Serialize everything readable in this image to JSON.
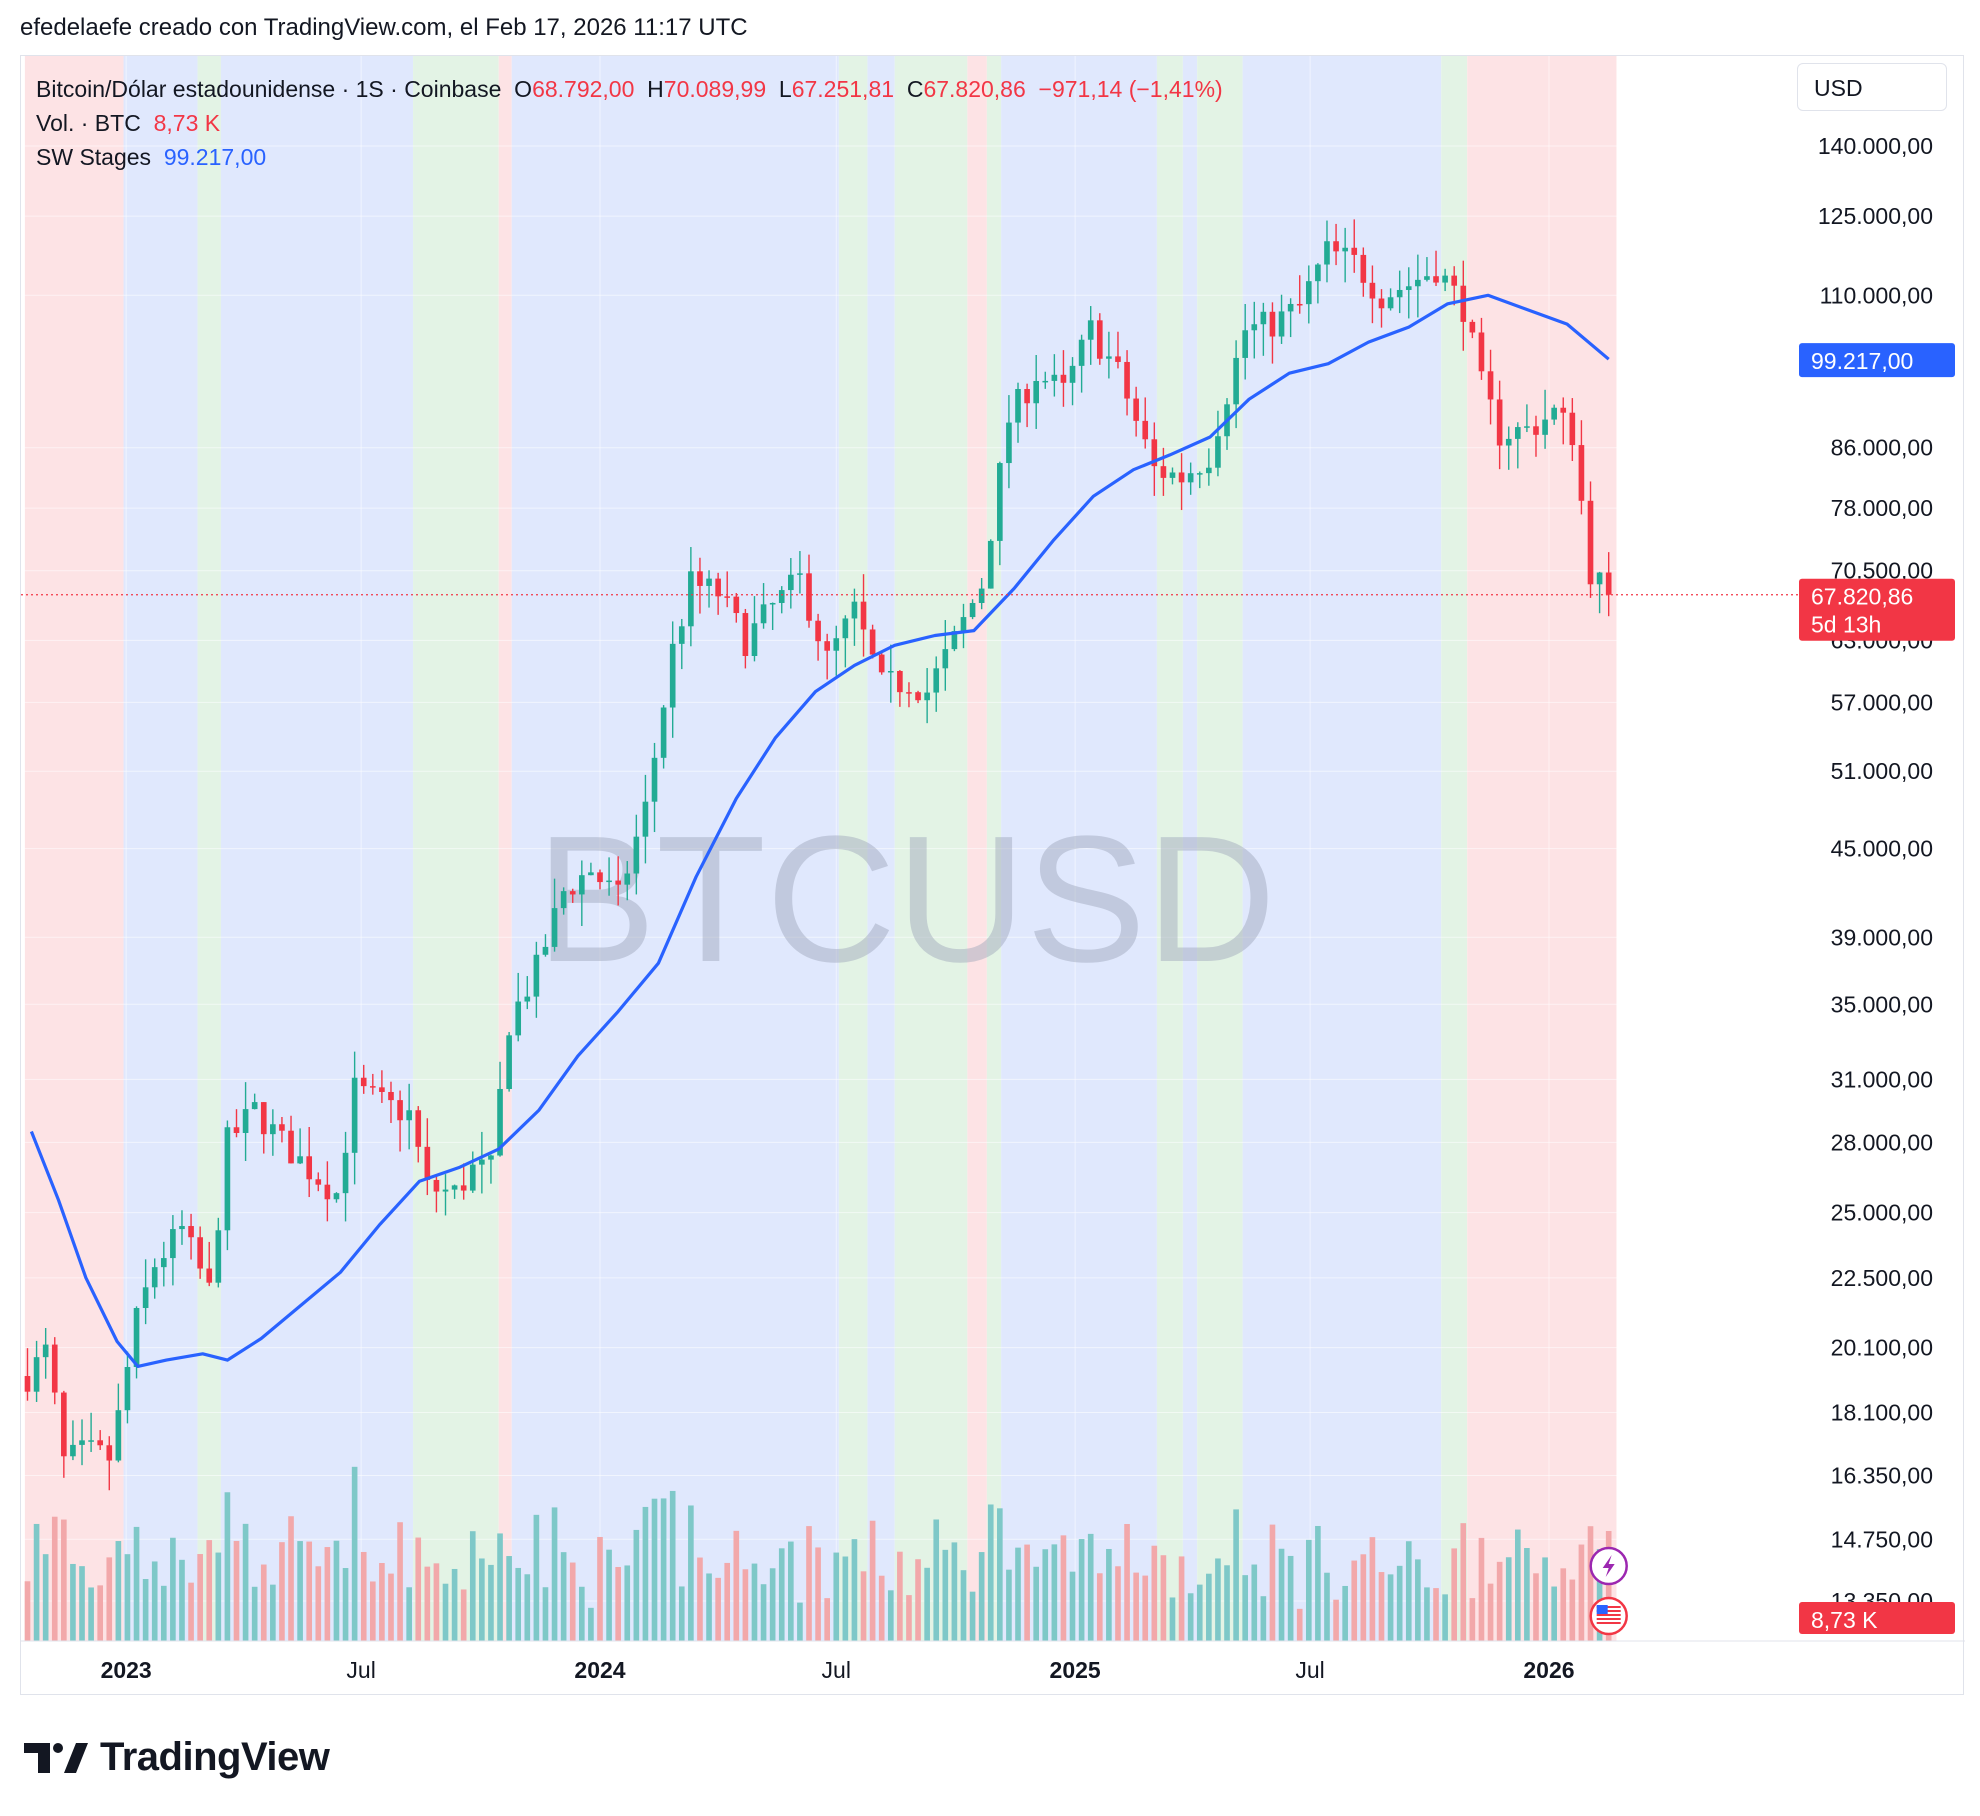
{
  "header": {
    "text": "efedelaefe creado con TradingView.com, el Feb 17, 2026 11:17 UTC"
  },
  "legend": {
    "symbol": "Bitcoin/Dólar estadounidense · 1S · Coinbase",
    "o_label": "O",
    "o_value": "68.792,00",
    "h_label": "H",
    "h_value": "70.089,99",
    "l_label": "L",
    "l_value": "67.251,81",
    "c_label": "C",
    "c_value": "67.820,86",
    "change": "−971,14 (−1,41%)",
    "vol_label": "Vol. · BTC",
    "vol_value": "8,73 K",
    "sw_label": "SW Stages",
    "sw_value": "99.217,00"
  },
  "currency_button": "USD",
  "watermark": "BTCUSD",
  "footer": {
    "brand": "TradingView"
  },
  "colors": {
    "up": "#22ab94",
    "down": "#f23645",
    "ma": "#2962ff",
    "stage_red": "#fde3e5",
    "stage_blue": "#e0e8fd",
    "stage_green": "#e3f3e5",
    "vol_up": "#7ec8c8",
    "vol_down": "#f2a8aa"
  },
  "chart_data": {
    "type": "candlestick",
    "timeframe": "1W",
    "scale": "log",
    "y_ticks": [
      "140.000,00",
      "125.000,00",
      "110.000,00",
      "86.000,00",
      "78.000,00",
      "70.500,00",
      "63.000,00",
      "57.000,00",
      "51.000,00",
      "45.000,00",
      "39.000,00",
      "35.000,00",
      "31.000,00",
      "28.000,00",
      "25.000,00",
      "22.500,00",
      "20.100,00",
      "18.100,00",
      "16.350,00",
      "14.750,00",
      "13.350,00"
    ],
    "x_ticks": [
      {
        "label": "2023",
        "date": "2023-01-01",
        "bold": true
      },
      {
        "label": "Jul",
        "date": "2023-07-01",
        "bold": false
      },
      {
        "label": "2024",
        "date": "2024-01-01",
        "bold": true
      },
      {
        "label": "Jul",
        "date": "2024-07-01",
        "bold": false
      },
      {
        "label": "2025",
        "date": "2025-01-01",
        "bold": true
      },
      {
        "label": "Jul",
        "date": "2025-07-01",
        "bold": false
      },
      {
        "label": "2026",
        "date": "2026-01-01",
        "bold": true
      }
    ],
    "price_labels": {
      "sw_stages": "99.217,00",
      "last": "67.820,86",
      "countdown": "5d 13h",
      "volume": "8,73 K"
    },
    "last_price": 67820.86,
    "stages": [
      {
        "from": "2022-10-15",
        "to": "2022-12-30",
        "stage": "red"
      },
      {
        "from": "2022-12-30",
        "to": "2023-02-25",
        "stage": "blue"
      },
      {
        "from": "2023-02-25",
        "to": "2023-03-15",
        "stage": "green"
      },
      {
        "from": "2023-03-15",
        "to": "2023-08-10",
        "stage": "blue"
      },
      {
        "from": "2023-08-10",
        "to": "2023-10-15",
        "stage": "green"
      },
      {
        "from": "2023-10-15",
        "to": "2023-10-25",
        "stage": "red"
      },
      {
        "from": "2023-10-25",
        "to": "2024-07-03",
        "stage": "blue"
      },
      {
        "from": "2024-07-03",
        "to": "2024-07-25",
        "stage": "green"
      },
      {
        "from": "2024-07-25",
        "to": "2024-08-15",
        "stage": "blue"
      },
      {
        "from": "2024-08-15",
        "to": "2024-10-10",
        "stage": "green"
      },
      {
        "from": "2024-10-10",
        "to": "2024-10-25",
        "stage": "red"
      },
      {
        "from": "2024-10-25",
        "to": "2024-11-05",
        "stage": "green"
      },
      {
        "from": "2024-11-05",
        "to": "2025-03-05",
        "stage": "blue"
      },
      {
        "from": "2025-03-05",
        "to": "2025-03-25",
        "stage": "green"
      },
      {
        "from": "2025-03-25",
        "to": "2025-04-05",
        "stage": "blue"
      },
      {
        "from": "2025-04-05",
        "to": "2025-05-10",
        "stage": "green"
      },
      {
        "from": "2025-05-10",
        "to": "2025-10-10",
        "stage": "blue"
      },
      {
        "from": "2025-10-10",
        "to": "2025-10-30",
        "stage": "green"
      },
      {
        "from": "2025-10-30",
        "to": "2026-02-22",
        "stage": "red"
      }
    ],
    "ma_series": [
      {
        "date": "2022-10-20",
        "value": 28500
      },
      {
        "date": "2022-11-10",
        "value": 25500
      },
      {
        "date": "2022-12-01",
        "value": 22500
      },
      {
        "date": "2022-12-25",
        "value": 20300
      },
      {
        "date": "2023-01-10",
        "value": 19500
      },
      {
        "date": "2023-02-01",
        "value": 19700
      },
      {
        "date": "2023-03-01",
        "value": 19900
      },
      {
        "date": "2023-03-20",
        "value": 19700
      },
      {
        "date": "2023-04-15",
        "value": 20400
      },
      {
        "date": "2023-05-15",
        "value": 21500
      },
      {
        "date": "2023-06-15",
        "value": 22700
      },
      {
        "date": "2023-07-15",
        "value": 24500
      },
      {
        "date": "2023-08-15",
        "value": 26300
      },
      {
        "date": "2023-09-15",
        "value": 26900
      },
      {
        "date": "2023-10-15",
        "value": 27700
      },
      {
        "date": "2023-11-15",
        "value": 29500
      },
      {
        "date": "2023-12-15",
        "value": 32200
      },
      {
        "date": "2024-01-15",
        "value": 34600
      },
      {
        "date": "2024-02-15",
        "value": 37400
      },
      {
        "date": "2024-03-15",
        "value": 43000
      },
      {
        "date": "2024-04-15",
        "value": 48800
      },
      {
        "date": "2024-05-15",
        "value": 53800
      },
      {
        "date": "2024-06-15",
        "value": 58000
      },
      {
        "date": "2024-07-15",
        "value": 60500
      },
      {
        "date": "2024-08-15",
        "value": 62500
      },
      {
        "date": "2024-09-15",
        "value": 63500
      },
      {
        "date": "2024-10-15",
        "value": 64000
      },
      {
        "date": "2024-11-15",
        "value": 68500
      },
      {
        "date": "2024-12-15",
        "value": 74000
      },
      {
        "date": "2025-01-15",
        "value": 79500
      },
      {
        "date": "2025-02-15",
        "value": 83000
      },
      {
        "date": "2025-03-15",
        "value": 85000
      },
      {
        "date": "2025-04-15",
        "value": 87500
      },
      {
        "date": "2025-05-15",
        "value": 93000
      },
      {
        "date": "2025-06-15",
        "value": 97000
      },
      {
        "date": "2025-07-15",
        "value": 98500
      },
      {
        "date": "2025-08-15",
        "value": 102000
      },
      {
        "date": "2025-09-15",
        "value": 104500
      },
      {
        "date": "2025-10-15",
        "value": 108500
      },
      {
        "date": "2025-11-15",
        "value": 110000
      },
      {
        "date": "2025-12-15",
        "value": 107500
      },
      {
        "date": "2026-01-15",
        "value": 105000
      },
      {
        "date": "2026-02-16",
        "value": 99217
      }
    ],
    "close_series": [
      {
        "date": "2022-10-17",
        "value": 19200
      },
      {
        "date": "2022-11-01",
        "value": 20000
      },
      {
        "date": "2022-11-14",
        "value": 16700
      },
      {
        "date": "2022-12-01",
        "value": 17000
      },
      {
        "date": "2022-12-20",
        "value": 16800
      },
      {
        "date": "2023-01-09",
        "value": 21000
      },
      {
        "date": "2023-01-23",
        "value": 23000
      },
      {
        "date": "2023-02-13",
        "value": 24300
      },
      {
        "date": "2023-03-06",
        "value": 22000
      },
      {
        "date": "2023-03-20",
        "value": 28000
      },
      {
        "date": "2023-04-10",
        "value": 29500
      },
      {
        "date": "2023-05-01",
        "value": 28000
      },
      {
        "date": "2023-05-22",
        "value": 26800
      },
      {
        "date": "2023-06-12",
        "value": 25800
      },
      {
        "date": "2023-06-26",
        "value": 30500
      },
      {
        "date": "2023-07-17",
        "value": 29800
      },
      {
        "date": "2023-08-07",
        "value": 29300
      },
      {
        "date": "2023-08-21",
        "value": 26000
      },
      {
        "date": "2023-09-11",
        "value": 25800
      },
      {
        "date": "2023-09-25",
        "value": 26800
      },
      {
        "date": "2023-10-09",
        "value": 26800
      },
      {
        "date": "2023-10-23",
        "value": 34000
      },
      {
        "date": "2023-11-13",
        "value": 37000
      },
      {
        "date": "2023-12-04",
        "value": 42000
      },
      {
        "date": "2023-12-25",
        "value": 43500
      },
      {
        "date": "2024-01-15",
        "value": 41500
      },
      {
        "date": "2024-02-05",
        "value": 48000
      },
      {
        "date": "2024-02-26",
        "value": 62000
      },
      {
        "date": "2024-03-11",
        "value": 69000
      },
      {
        "date": "2024-04-01",
        "value": 68000
      },
      {
        "date": "2024-04-22",
        "value": 63000
      },
      {
        "date": "2024-05-13",
        "value": 66500
      },
      {
        "date": "2024-06-03",
        "value": 69500
      },
      {
        "date": "2024-06-24",
        "value": 61000
      },
      {
        "date": "2024-07-15",
        "value": 66000
      },
      {
        "date": "2024-08-05",
        "value": 58500
      },
      {
        "date": "2024-08-26",
        "value": 59000
      },
      {
        "date": "2024-09-09",
        "value": 58000
      },
      {
        "date": "2024-09-30",
        "value": 63000
      },
      {
        "date": "2024-10-21",
        "value": 69000
      },
      {
        "date": "2024-11-11",
        "value": 90000
      },
      {
        "date": "2024-12-02",
        "value": 97000
      },
      {
        "date": "2024-12-23",
        "value": 94000
      },
      {
        "date": "2025-01-13",
        "value": 104000
      },
      {
        "date": "2025-02-03",
        "value": 97000
      },
      {
        "date": "2025-03-03",
        "value": 83000
      },
      {
        "date": "2025-03-24",
        "value": 82000
      },
      {
        "date": "2025-04-14",
        "value": 85000
      },
      {
        "date": "2025-05-12",
        "value": 104000
      },
      {
        "date": "2025-06-02",
        "value": 105000
      },
      {
        "date": "2025-06-23",
        "value": 108000
      },
      {
        "date": "2025-07-14",
        "value": 118000
      },
      {
        "date": "2025-08-04",
        "value": 116000
      },
      {
        "date": "2025-08-25",
        "value": 110000
      },
      {
        "date": "2025-09-15",
        "value": 112000
      },
      {
        "date": "2025-10-06",
        "value": 115000
      },
      {
        "date": "2025-10-27",
        "value": 108000
      },
      {
        "date": "2025-11-10",
        "value": 95000
      },
      {
        "date": "2025-11-24",
        "value": 88000
      },
      {
        "date": "2025-12-15",
        "value": 88500
      },
      {
        "date": "2026-01-05",
        "value": 91000
      },
      {
        "date": "2026-01-19",
        "value": 88000
      },
      {
        "date": "2026-02-02",
        "value": 70500
      },
      {
        "date": "2026-02-16",
        "value": 67820.86
      }
    ]
  }
}
